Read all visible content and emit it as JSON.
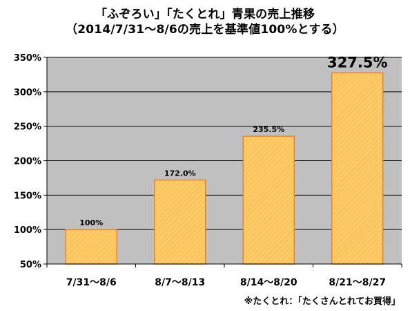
{
  "chart_data": {
    "type": "bar",
    "title": "「ふぞろい」「たくとれ」青果の売上推移",
    "subtitle": "（2014/7/31～8/6の売上を基準値100%とする）",
    "categories": [
      "7/31～8/6",
      "8/7～8/13",
      "8/14～8/20",
      "8/21～8/27"
    ],
    "values": [
      100,
      172.0,
      235.5,
      327.5
    ],
    "data_labels": [
      "100%",
      "172.0%",
      "235.5%",
      "327.5%"
    ],
    "yticks": [
      50,
      100,
      150,
      200,
      250,
      300,
      350
    ],
    "ytick_labels": [
      "50%",
      "100%",
      "150%",
      "200%",
      "250%",
      "300%",
      "350%"
    ],
    "ylim": [
      50,
      350
    ],
    "grid": true,
    "xlabel": "",
    "ylabel": "",
    "colors": {
      "plot_bg": "#c0c0c0",
      "bar_fill": "#ffcc66",
      "bar_stroke": "#e8842c",
      "grid": "#000000"
    }
  },
  "footnote": "※たくとれ：「たくさんとれてお買得」"
}
